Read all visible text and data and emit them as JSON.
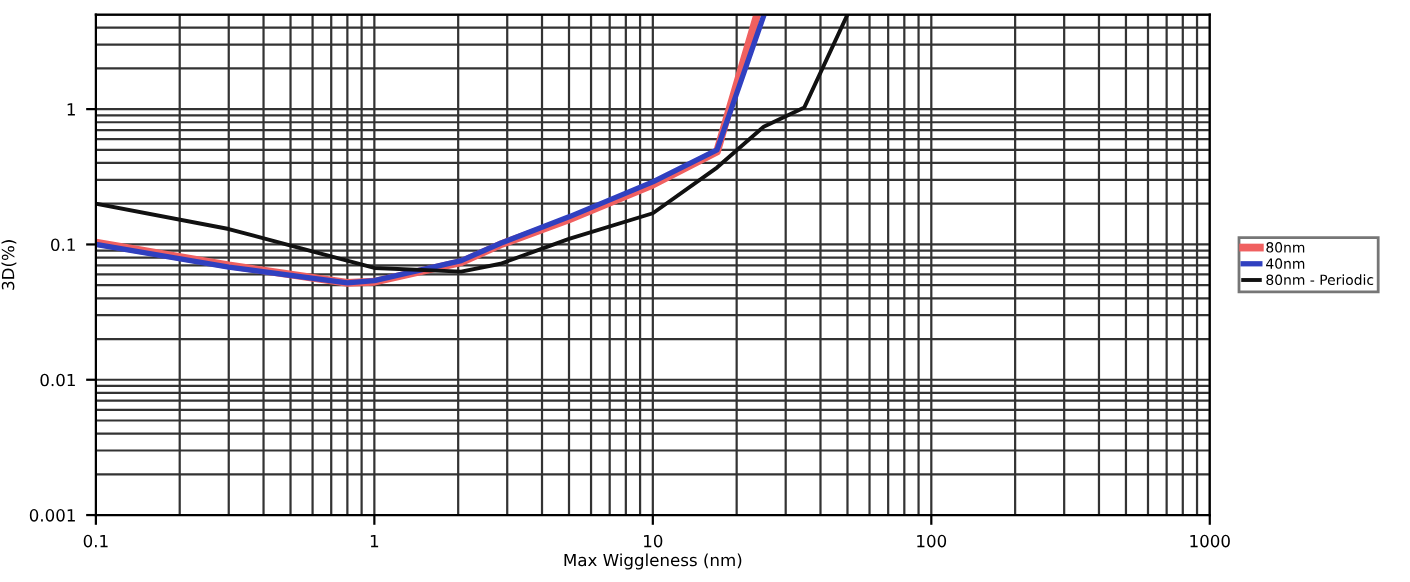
{
  "chart_data": {
    "type": "line",
    "xlabel": "Max Wiggleness (nm)",
    "ylabel": "3D(%)",
    "log": "xy",
    "grid": true,
    "legend": "right",
    "marker": "none",
    "line_style": "solid",
    "xlim": [
      0.1,
      1000
    ],
    "xticks": [
      0.1,
      1,
      10,
      100,
      1000
    ],
    "ylim": [
      0.001,
      5
    ],
    "yticks": [
      0.001,
      0.01,
      0.1,
      1
    ],
    "series": [
      {
        "name": "80nm",
        "color": "#f06060",
        "x": [
          0.1,
          0.3,
          0.8,
          1,
          2.05,
          2.84,
          5,
          10,
          17,
          23.7
        ],
        "values": [
          0.103,
          0.07,
          0.052,
          0.053,
          0.074,
          0.1,
          0.153,
          0.277,
          0.485,
          5
        ]
      },
      {
        "name": "40nm",
        "color": "#3040c0",
        "x": [
          0.1,
          0.3,
          0.8,
          1,
          2.05,
          2.84,
          5,
          10,
          17,
          25.1
        ],
        "values": [
          0.1,
          0.068,
          0.052,
          0.054,
          0.076,
          0.102,
          0.16,
          0.29,
          0.5,
          5
        ]
      },
      {
        "name": "80nm - Periodic",
        "color": "#111111",
        "x": [
          0.1,
          0.3,
          1,
          2.05,
          2.84,
          5,
          10,
          17,
          25,
          35,
          50
        ],
        "values": [
          0.2,
          0.13,
          0.067,
          0.063,
          0.072,
          0.11,
          0.17,
          0.37,
          0.74,
          1.03,
          5
        ]
      }
    ]
  }
}
